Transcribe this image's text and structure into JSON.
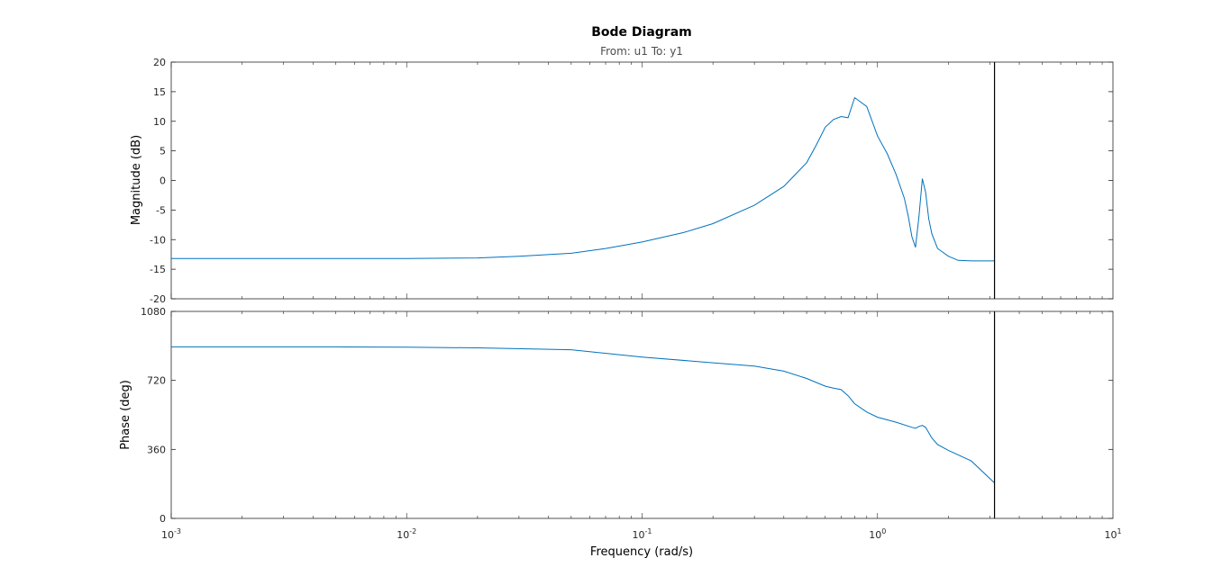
{
  "chart_data": {
    "type": "line",
    "title": "Bode Diagram",
    "subtitle": "From: u1  To: y1",
    "xlabel": "Frequency  (rad/s)",
    "x_scale": "log",
    "xlim": [
      0.001,
      10
    ],
    "x_ticks": [
      {
        "value": 0.001,
        "base": "10",
        "exp": "-3"
      },
      {
        "value": 0.01,
        "base": "10",
        "exp": "-2"
      },
      {
        "value": 0.1,
        "base": "10",
        "exp": "-1"
      },
      {
        "value": 1,
        "base": "10",
        "exp": "0"
      },
      {
        "value": 10,
        "base": "10",
        "exp": "1"
      }
    ],
    "frequency_limit_marker": 3.14,
    "colors": {
      "curve": "#0072bd",
      "axes": "#262626",
      "minor_ticks": "#262626",
      "marker": "#000000"
    },
    "panels": [
      {
        "name": "magnitude",
        "ylabel": "Magnitude (dB)",
        "ylim": [
          -20,
          20
        ],
        "y_ticks": [
          -20,
          -15,
          -10,
          -5,
          0,
          5,
          10,
          15,
          20
        ],
        "series": [
          {
            "x": [
              0.001,
              0.002,
              0.005,
              0.01,
              0.02,
              0.03,
              0.05,
              0.07,
              0.1,
              0.15,
              0.2,
              0.3,
              0.4,
              0.5,
              0.55,
              0.6,
              0.65,
              0.7,
              0.75,
              0.8,
              0.9,
              1.0,
              1.1,
              1.2,
              1.3,
              1.35,
              1.4,
              1.45,
              1.5,
              1.55,
              1.6,
              1.65,
              1.7,
              1.8,
              2.0,
              2.2,
              2.5,
              3.14
            ],
            "y": [
              -13.2,
              -13.2,
              -13.2,
              -13.2,
              -13.1,
              -12.8,
              -12.3,
              -11.5,
              -10.4,
              -8.8,
              -7.3,
              -4.2,
              -1.0,
              3.0,
              6.0,
              9.0,
              10.3,
              10.8,
              10.6,
              14.0,
              12.5,
              7.5,
              4.5,
              1.0,
              -3.0,
              -6.0,
              -9.5,
              -11.3,
              -6.0,
              0.3,
              -2.0,
              -6.5,
              -9.0,
              -11.5,
              -12.8,
              -13.5,
              -13.6,
              -13.6
            ]
          }
        ]
      },
      {
        "name": "phase",
        "ylabel": "Phase (deg)",
        "ylim": [
          0,
          1080
        ],
        "y_ticks": [
          0,
          360,
          720,
          1080
        ],
        "series": [
          {
            "x": [
              0.001,
              0.005,
              0.01,
              0.02,
              0.05,
              0.1,
              0.2,
              0.3,
              0.4,
              0.5,
              0.6,
              0.65,
              0.7,
              0.75,
              0.8,
              0.9,
              1.0,
              1.2,
              1.4,
              1.45,
              1.5,
              1.55,
              1.6,
              1.7,
              1.8,
              2.0,
              2.5,
              3.14
            ],
            "y": [
              895,
              895,
              893,
              890,
              880,
              842,
              812,
              795,
              768,
              730,
              690,
              680,
              672,
              640,
              598,
              555,
              528,
              502,
              475,
              470,
              480,
              485,
              475,
              420,
              385,
              355,
              300,
              185
            ]
          }
        ]
      }
    ]
  }
}
